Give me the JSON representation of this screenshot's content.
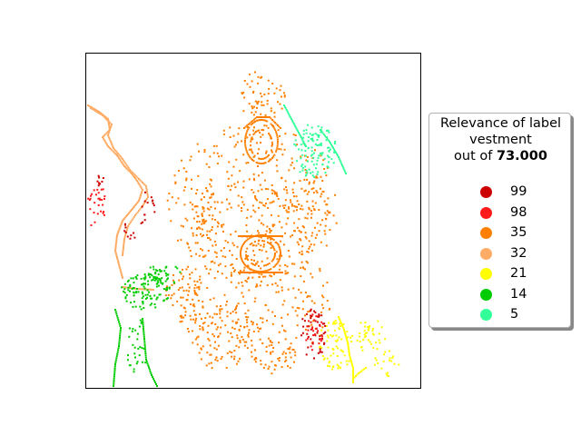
{
  "chart_data": {
    "type": "scatter",
    "title": "",
    "xlabel": "",
    "ylabel": "",
    "grid": false,
    "axes_ticks": false,
    "legend_placement": "right",
    "legend": {
      "title_line1": "Relevance of label",
      "title_line2": "vestment",
      "title_prefix": "out of ",
      "total": "73.000"
    },
    "series": [
      {
        "name": "99",
        "color": "#cc0000"
      },
      {
        "name": "98",
        "color": "#ff1a1a"
      },
      {
        "name": "35",
        "color": "#ff8000"
      },
      {
        "name": "32",
        "color": "#ffad66"
      },
      {
        "name": "21",
        "color": "#ffff00"
      },
      {
        "name": "14",
        "color": "#00cc00"
      },
      {
        "name": "5",
        "color": "#33ff99"
      }
    ]
  }
}
